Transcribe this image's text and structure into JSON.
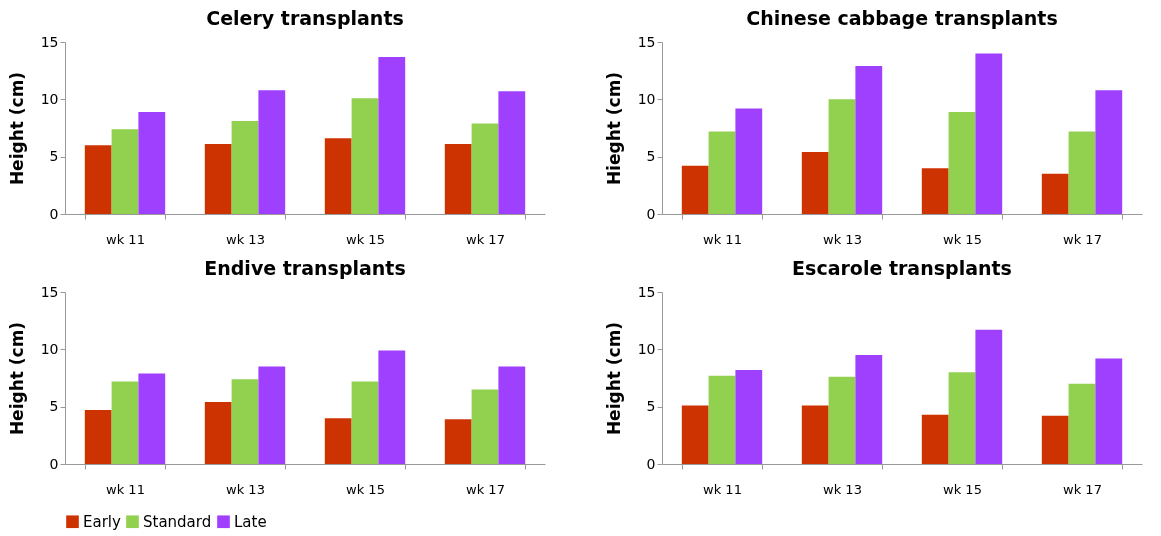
{
  "chart_data": [
    {
      "type": "bar",
      "title": "Celery transplants",
      "ylabel": "Height (cm)",
      "categories": [
        "wk 11",
        "wk 13",
        "wk 15",
        "wk 17"
      ],
      "ylim": [
        0,
        15
      ],
      "yticks": [
        0,
        5,
        10,
        15
      ],
      "grid": false,
      "legend": "bottom",
      "series": [
        {
          "name": "Early",
          "color": "#cc3300",
          "values": [
            6.0,
            6.1,
            6.6,
            6.1
          ]
        },
        {
          "name": "Standard",
          "color": "#92d050",
          "values": [
            7.4,
            8.1,
            10.1,
            7.9
          ]
        },
        {
          "name": "Late",
          "color": "#a040ff",
          "values": [
            8.9,
            10.8,
            13.7,
            10.7
          ]
        }
      ]
    },
    {
      "type": "bar",
      "title": "Chinese cabbage transplants",
      "ylabel": "Hieght (cm)",
      "categories": [
        "wk 11",
        "wk 13",
        "wk 15",
        "wk 17"
      ],
      "ylim": [
        0,
        15
      ],
      "yticks": [
        0,
        5,
        10,
        15
      ],
      "grid": false,
      "legend": "bottom",
      "series": [
        {
          "name": "Early",
          "color": "#cc3300",
          "values": [
            4.2,
            5.4,
            4.0,
            3.5
          ]
        },
        {
          "name": "Standard",
          "color": "#92d050",
          "values": [
            7.2,
            10.0,
            8.9,
            7.2
          ]
        },
        {
          "name": "Late",
          "color": "#a040ff",
          "values": [
            9.2,
            12.9,
            14.0,
            10.8
          ]
        }
      ]
    },
    {
      "type": "bar",
      "title": "Endive transplants",
      "ylabel": "Height (cm)",
      "categories": [
        "wk 11",
        "wk 13",
        "wk 15",
        "wk 17"
      ],
      "ylim": [
        0,
        15
      ],
      "yticks": [
        0,
        5,
        10,
        15
      ],
      "grid": false,
      "legend": "bottom",
      "series": [
        {
          "name": "Early",
          "color": "#cc3300",
          "values": [
            4.7,
            5.4,
            4.0,
            3.9
          ]
        },
        {
          "name": "Standard",
          "color": "#92d050",
          "values": [
            7.2,
            7.4,
            7.2,
            6.5
          ]
        },
        {
          "name": "Late",
          "color": "#a040ff",
          "values": [
            7.9,
            8.5,
            9.9,
            8.5
          ]
        }
      ]
    },
    {
      "type": "bar",
      "title": "Escarole transplants",
      "ylabel": "Height (cm)",
      "categories": [
        "wk 11",
        "wk 13",
        "wk 15",
        "wk 17"
      ],
      "ylim": [
        0,
        15
      ],
      "yticks": [
        0,
        5,
        10,
        15
      ],
      "grid": false,
      "legend": "bottom",
      "series": [
        {
          "name": "Early",
          "color": "#cc3300",
          "values": [
            5.1,
            5.1,
            4.3,
            4.2
          ]
        },
        {
          "name": "Standard",
          "color": "#92d050",
          "values": [
            7.7,
            7.6,
            8.0,
            7.0
          ]
        },
        {
          "name": "Late",
          "color": "#a040ff",
          "values": [
            8.2,
            9.5,
            11.7,
            9.2
          ]
        }
      ]
    }
  ]
}
